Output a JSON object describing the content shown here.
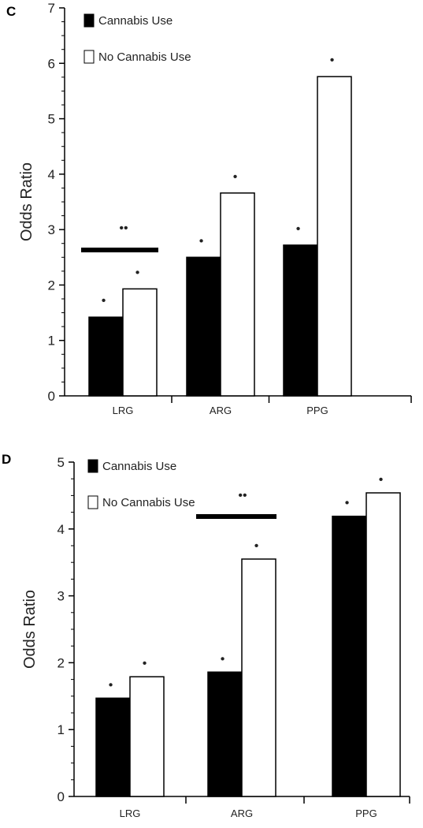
{
  "chart_data": [
    {
      "type": "bar",
      "panel_label": "C",
      "ylabel": "Odds Ratio",
      "ylim": [
        0,
        7
      ],
      "yticks": [
        "0",
        "1",
        "2",
        "3",
        "4",
        "5",
        "6",
        "7"
      ],
      "categories": [
        "LRG",
        "ARG",
        "PPG"
      ],
      "series": [
        {
          "name": "Cannabis Use",
          "values": [
            1.42,
            2.5,
            2.72
          ],
          "color": "#000000"
        },
        {
          "name": "No Cannabis Use",
          "values": [
            1.93,
            3.66,
            5.76
          ],
          "color": "#ffffff"
        }
      ],
      "single_markers": [
        "•",
        "•",
        "•",
        "•",
        "•",
        "•"
      ],
      "double_markers": [
        {
          "text": "••",
          "category_index": 0
        }
      ],
      "legend_position": "top-left",
      "grid": false
    },
    {
      "type": "bar",
      "panel_label": "D",
      "ylabel": "Odds Ratio",
      "ylim": [
        0,
        5
      ],
      "yticks": [
        "0",
        "1",
        "2",
        "3",
        "4",
        "5"
      ],
      "categories": [
        "LRG",
        "ARG",
        "PPG"
      ],
      "series": [
        {
          "name": "Cannabis Use",
          "values": [
            1.47,
            1.86,
            4.19
          ],
          "color": "#000000"
        },
        {
          "name": "No Cannabis Use",
          "values": [
            1.79,
            3.55,
            4.54
          ],
          "color": "#ffffff"
        }
      ],
      "single_markers": [
        "•",
        "•",
        "•",
        "•",
        "•",
        "•"
      ],
      "double_markers": [
        {
          "text": "••",
          "category_index": 1
        }
      ],
      "legend_position": "top-left",
      "grid": false
    }
  ]
}
